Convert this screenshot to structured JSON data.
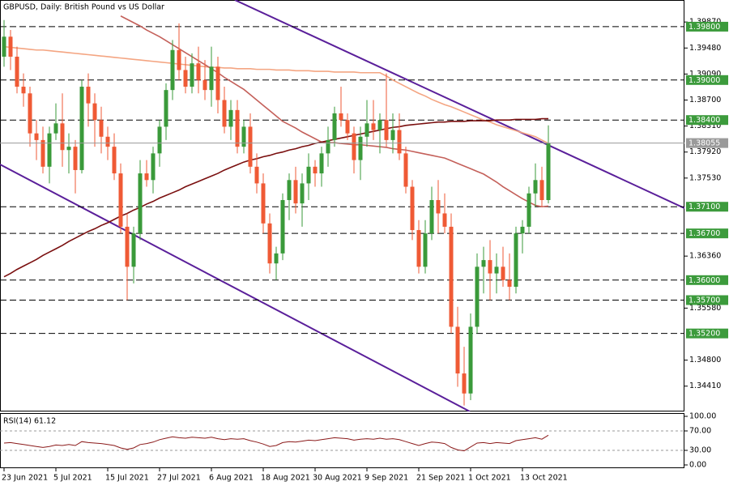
{
  "chart_data": [
    {
      "type": "candlestick",
      "title": "GBPUSD, Daily:  British Pound vs US Dollar",
      "categories": [
        "23 Jun 2021",
        null,
        null,
        null,
        null,
        null,
        null,
        null,
        "5 Jul 2021",
        null,
        null,
        null,
        null,
        null,
        null,
        null,
        "15 Jul 2021",
        null,
        null,
        null,
        null,
        null,
        null,
        null,
        "27 Jul 2021",
        null,
        null,
        null,
        null,
        null,
        null,
        null,
        "6 Aug 2021",
        null,
        null,
        null,
        null,
        null,
        null,
        null,
        "18 Aug 2021",
        null,
        null,
        null,
        null,
        null,
        null,
        null,
        "30 Aug 2021",
        null,
        null,
        null,
        null,
        null,
        null,
        null,
        "9 Sep 2021",
        null,
        null,
        null,
        null,
        null,
        null,
        null,
        "21 Sep 2021",
        null,
        null,
        null,
        null,
        null,
        null,
        null,
        "1 Oct 2021",
        null,
        null,
        null,
        null,
        null,
        null,
        null,
        "13 Oct 2021",
        null,
        null,
        null,
        null
      ],
      "open": [
        1.3935,
        1.3965,
        1.3935,
        1.389,
        1.388,
        1.382,
        1.381,
        1.377,
        1.382,
        1.3835,
        1.3795,
        1.38,
        1.3765,
        1.389,
        1.3865,
        1.384,
        1.3815,
        1.38,
        1.376,
        1.368,
        1.362,
        1.367,
        1.376,
        1.375,
        1.379,
        1.383,
        1.3885,
        1.3945,
        1.3915,
        1.389,
        1.3925,
        1.39,
        1.3885,
        1.392,
        1.387,
        1.383,
        1.3855,
        1.38,
        1.383,
        1.377,
        1.3745,
        1.3685,
        1.3625,
        1.364,
        1.372,
        1.375,
        1.3715,
        1.3745,
        1.377,
        1.376,
        1.379,
        1.381,
        1.385,
        1.384,
        1.382,
        1.378,
        1.3815,
        1.3835,
        1.3825,
        1.384,
        1.381,
        1.3825,
        1.379,
        1.374,
        1.3675,
        1.362,
        1.367,
        1.372,
        1.37,
        1.368,
        1.353,
        1.346,
        1.343,
        1.353,
        1.362,
        1.363,
        1.361,
        1.362,
        1.36,
        1.359,
        1.367,
        1.368,
        1.373,
        1.375,
        1.372
      ],
      "high": [
        1.399,
        1.3975,
        1.395,
        1.391,
        1.389,
        1.384,
        1.383,
        1.383,
        1.3865,
        1.388,
        1.382,
        1.381,
        1.39,
        1.391,
        1.388,
        1.386,
        1.383,
        1.382,
        1.3775,
        1.37,
        1.368,
        1.378,
        1.378,
        1.38,
        1.384,
        1.3895,
        1.396,
        1.3985,
        1.3935,
        1.394,
        1.395,
        1.393,
        1.395,
        1.3935,
        1.389,
        1.387,
        1.387,
        1.384,
        1.385,
        1.379,
        1.376,
        1.37,
        1.365,
        1.373,
        1.376,
        1.377,
        1.376,
        1.379,
        1.378,
        1.38,
        1.383,
        1.386,
        1.389,
        1.385,
        1.383,
        1.383,
        1.387,
        1.387,
        1.385,
        1.391,
        1.385,
        1.385,
        1.38,
        1.375,
        1.369,
        1.369,
        1.374,
        1.375,
        1.373,
        1.37,
        1.356,
        1.35,
        1.355,
        1.364,
        1.365,
        1.366,
        1.364,
        1.365,
        1.364,
        1.368,
        1.369,
        1.374,
        1.3775,
        1.377,
        1.3832
      ],
      "low": [
        1.392,
        1.3915,
        1.388,
        1.386,
        1.38,
        1.378,
        1.376,
        1.3745,
        1.381,
        1.377,
        1.376,
        1.373,
        1.376,
        1.383,
        1.38,
        1.379,
        1.378,
        1.375,
        1.367,
        1.357,
        1.3595,
        1.366,
        1.374,
        1.373,
        1.377,
        1.381,
        1.387,
        1.39,
        1.388,
        1.388,
        1.388,
        1.387,
        1.386,
        1.385,
        1.382,
        1.381,
        1.379,
        1.379,
        1.376,
        1.373,
        1.367,
        1.361,
        1.36,
        1.363,
        1.369,
        1.37,
        1.368,
        1.372,
        1.374,
        1.374,
        1.377,
        1.38,
        1.383,
        1.381,
        1.376,
        1.375,
        1.38,
        1.381,
        1.379,
        1.38,
        1.379,
        1.378,
        1.373,
        1.366,
        1.361,
        1.361,
        1.366,
        1.367,
        1.367,
        1.352,
        1.344,
        1.3412,
        1.342,
        1.352,
        1.358,
        1.357,
        1.358,
        1.359,
        1.357,
        1.358,
        1.364,
        1.367,
        1.371,
        1.371,
        1.3715
      ],
      "close": [
        1.3965,
        1.3935,
        1.389,
        1.388,
        1.382,
        1.381,
        1.377,
        1.382,
        1.3835,
        1.3795,
        1.38,
        1.3765,
        1.389,
        1.3865,
        1.384,
        1.3815,
        1.38,
        1.376,
        1.368,
        1.362,
        1.367,
        1.376,
        1.375,
        1.379,
        1.383,
        1.3885,
        1.3945,
        1.3915,
        1.389,
        1.3925,
        1.39,
        1.3885,
        1.392,
        1.387,
        1.383,
        1.3855,
        1.38,
        1.383,
        1.377,
        1.3745,
        1.3685,
        1.3625,
        1.364,
        1.372,
        1.375,
        1.3715,
        1.3745,
        1.377,
        1.376,
        1.379,
        1.381,
        1.385,
        1.384,
        1.382,
        1.378,
        1.3815,
        1.3835,
        1.3825,
        1.384,
        1.381,
        1.3825,
        1.379,
        1.374,
        1.3675,
        1.362,
        1.367,
        1.372,
        1.37,
        1.368,
        1.353,
        1.346,
        1.343,
        1.353,
        1.362,
        1.363,
        1.361,
        1.362,
        1.36,
        1.359,
        1.367,
        1.368,
        1.373,
        1.375,
        1.372,
        1.38055
      ],
      "up_color": "#3a9a3a",
      "down_color": "#ef5a35",
      "series": [
        {
          "color": "#f4a582",
          "values": [
            1.395,
            1.3949,
            1.3948,
            1.3947,
            1.3946,
            1.3945,
            1.3945,
            1.3944,
            1.3943,
            1.3942,
            1.3941,
            1.394,
            1.3939,
            1.3938,
            1.3937,
            1.3936,
            1.3935,
            1.3934,
            1.3933,
            1.3932,
            1.3931,
            1.393,
            1.3929,
            1.3928,
            1.3927,
            1.3926,
            1.3925,
            1.3924,
            1.3923,
            1.3922,
            1.3921,
            1.392,
            1.3919,
            1.3919,
            1.3918,
            1.3918,
            1.3917,
            1.3917,
            1.3917,
            1.3916,
            1.3916,
            1.3916,
            1.3915,
            1.3915,
            1.3915,
            1.3914,
            1.3914,
            1.3914,
            1.3913,
            1.3913,
            1.3913,
            1.3912,
            1.3912,
            1.3912,
            1.3912,
            1.3911,
            1.3911,
            1.3911,
            1.3911,
            1.3906,
            1.39,
            1.3895,
            1.389,
            1.3885,
            1.388,
            1.3876,
            1.3871,
            1.3867,
            1.3863,
            1.386,
            1.3856,
            1.3852,
            1.3848,
            1.3844,
            1.384,
            1.3837,
            1.3833,
            1.383,
            1.3827,
            1.3824,
            1.3821,
            1.3818,
            1.3815,
            1.381,
            1.3805
          ]
        },
        {
          "color": "#c4605a",
          "values": [
            null,
            null,
            null,
            null,
            null,
            null,
            null,
            null,
            null,
            null,
            null,
            null,
            null,
            null,
            null,
            null,
            null,
            null,
            1.3996,
            1.3991,
            1.3986,
            1.3981,
            1.3975,
            1.397,
            1.3965,
            1.3959,
            1.3953,
            1.3947,
            1.3941,
            1.3935,
            1.3929,
            1.3923,
            1.3917,
            1.3911,
            1.3904,
            1.3898,
            1.3892,
            1.3886,
            1.3878,
            1.387,
            1.3862,
            1.3854,
            1.3846,
            1.3838,
            1.3833,
            1.3828,
            1.3822,
            1.3817,
            1.3812,
            1.3807,
            1.3806,
            1.3806,
            1.3805,
            1.3804,
            1.3803,
            1.3803,
            1.3802,
            1.3801,
            1.38,
            1.3799,
            1.3797,
            1.3796,
            1.3795,
            1.3793,
            1.3791,
            1.3789,
            1.3787,
            1.3785,
            1.3783,
            1.3779,
            1.3775,
            1.3771,
            1.3767,
            1.3763,
            1.3759,
            1.3753,
            1.3747,
            1.374,
            1.3734,
            1.3728,
            1.3722,
            1.3717,
            1.3712,
            1.371,
            1.3711
          ]
        },
        {
          "color": "#7a0f0f",
          "values": [
            1.3605,
            1.361,
            1.3616,
            1.3621,
            1.3626,
            1.3631,
            1.3637,
            1.3642,
            1.3647,
            1.3652,
            1.3658,
            1.3663,
            1.3668,
            1.3673,
            1.3677,
            1.3682,
            1.3686,
            1.3691,
            1.3696,
            1.37,
            1.3705,
            1.3709,
            1.3714,
            1.3718,
            1.3723,
            1.3727,
            1.3731,
            1.3735,
            1.374,
            1.3744,
            1.3748,
            1.3752,
            1.3756,
            1.376,
            1.3765,
            1.3769,
            1.3773,
            1.3777,
            1.378,
            1.3782,
            1.3785,
            1.3787,
            1.379,
            1.3792,
            1.3795,
            1.3797,
            1.38,
            1.3802,
            1.3805,
            1.3807,
            1.3809,
            1.3811,
            1.3813,
            1.3815,
            1.3817,
            1.3819,
            1.3821,
            1.3823,
            1.3825,
            1.3827,
            1.3829,
            1.383,
            1.3832,
            1.3833,
            1.3834,
            1.3835,
            1.3836,
            1.3837,
            1.3837,
            1.3838,
            1.3838,
            1.3838,
            1.3839,
            1.3839,
            1.3839,
            1.3839,
            1.384,
            1.384,
            1.384,
            1.3841,
            1.3841,
            1.3841,
            1.3841,
            1.3842,
            1.3842
          ]
        }
      ],
      "ylim": [
        1.3403,
        1.402
      ],
      "yticks": [
        {
          "value": 1.3987,
          "label": "1.39870"
        },
        {
          "value": 1.3948,
          "label": "1.39480"
        },
        {
          "value": 1.3909,
          "label": "1.39090"
        },
        {
          "value": 1.387,
          "label": "1.38700"
        },
        {
          "value": 1.3831,
          "label": "1.38310"
        },
        {
          "value": 1.3792,
          "label": "1.37920"
        },
        {
          "value": 1.3753,
          "label": "1.37530"
        },
        {
          "value": 1.3636,
          "label": "1.36360"
        },
        {
          "value": 1.3558,
          "label": "1.35580"
        },
        {
          "value": 1.348,
          "label": "1.34800"
        },
        {
          "value": 1.3441,
          "label": "1.34410"
        }
      ],
      "price_levels": [
        {
          "value": 1.398,
          "label": "1.39800"
        },
        {
          "value": 1.39,
          "label": "1.39000"
        },
        {
          "value": 1.384,
          "label": "1.38400"
        },
        {
          "value": 1.371,
          "label": "1.37100"
        },
        {
          "value": 1.367,
          "label": "1.36700"
        },
        {
          "value": 1.36,
          "label": "1.36000"
        },
        {
          "value": 1.357,
          "label": "1.35700"
        },
        {
          "value": 1.352,
          "label": "1.35200"
        }
      ],
      "last_price": 1.38055
    },
    {
      "type": "line",
      "title": "RSI(14) 61.12",
      "color": "#8b1a1a",
      "values": [
        45,
        46,
        44,
        42,
        40,
        38,
        36,
        38,
        41,
        40,
        42,
        40,
        48,
        46,
        45,
        44,
        42,
        40,
        35,
        32,
        35,
        42,
        44,
        47,
        52,
        55,
        58,
        56,
        55,
        57,
        56,
        55,
        57,
        54,
        52,
        54,
        53,
        54,
        50,
        47,
        43,
        38,
        40,
        46,
        48,
        47,
        49,
        51,
        50,
        52,
        54,
        56,
        55,
        54,
        51,
        53,
        54,
        53,
        55,
        53,
        54,
        52,
        48,
        44,
        40,
        44,
        47,
        46,
        44,
        36,
        31,
        29,
        37,
        45,
        46,
        44,
        46,
        45,
        44,
        50,
        52,
        54,
        56,
        53,
        61.12
      ],
      "ylim": [
        0,
        100
      ],
      "yticks": [
        {
          "value": 100,
          "label": "100.00"
        },
        {
          "value": 70,
          "label": "70.00"
        },
        {
          "value": 30,
          "label": "30.00"
        },
        {
          "value": 0,
          "label": "0.00"
        }
      ]
    }
  ]
}
